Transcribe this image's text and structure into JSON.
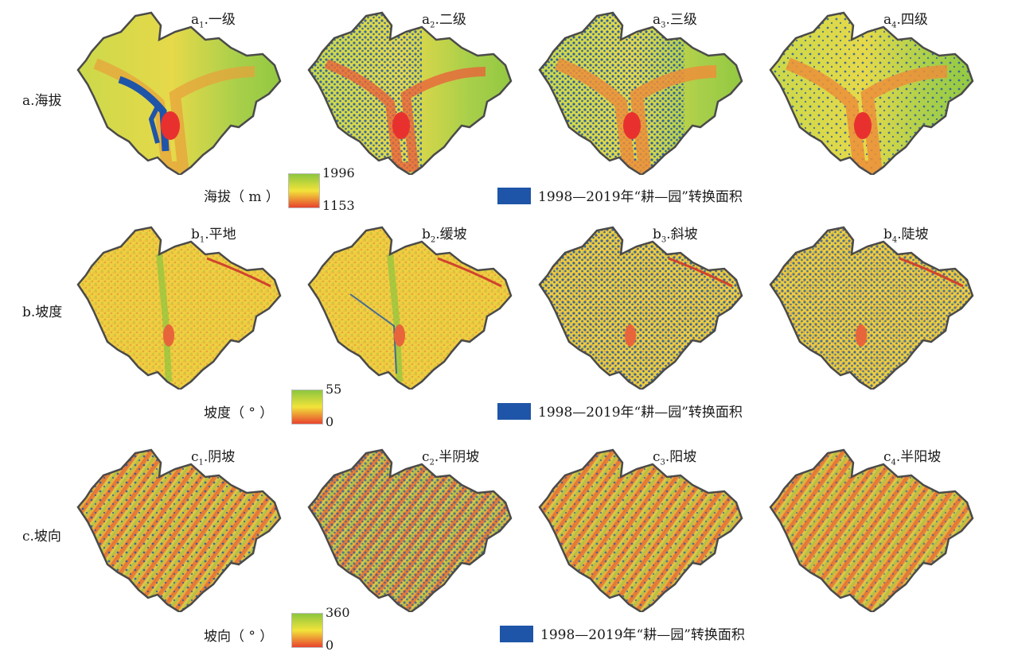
{
  "colors": {
    "conversion": "#1f55a8",
    "ramp_high": "#8cc63f",
    "ramp_mid": "#f2e33a",
    "ramp_low": "#e8432e",
    "boundary": "#4a4a4a"
  },
  "rows": [
    {
      "key": "a",
      "label": "a.海拔",
      "panels": [
        {
          "prefix": "a",
          "sub": "1",
          "name": ".一级",
          "conversion_class": "一级"
        },
        {
          "prefix": "a",
          "sub": "2",
          "name": ".二级",
          "conversion_class": "二级"
        },
        {
          "prefix": "a",
          "sub": "3",
          "name": ".三级",
          "conversion_class": "三级"
        },
        {
          "prefix": "a",
          "sub": "4",
          "name": ".四级",
          "conversion_class": "四级"
        }
      ],
      "legend": {
        "label": "海拔（ m ）",
        "max": "1996",
        "min": "1153"
      },
      "conversion_legend": "1998—2019年“耕—园”转换面积"
    },
    {
      "key": "b",
      "label": "b.坡度",
      "panels": [
        {
          "prefix": "b",
          "sub": "1",
          "name": ".平地",
          "conversion_class": "平地"
        },
        {
          "prefix": "b",
          "sub": "2",
          "name": ".缓坡",
          "conversion_class": "缓坡"
        },
        {
          "prefix": "b",
          "sub": "3",
          "name": ".斜坡",
          "conversion_class": "斜坡"
        },
        {
          "prefix": "b",
          "sub": "4",
          "name": ".陡坡",
          "conversion_class": "陡坡"
        }
      ],
      "legend": {
        "label": "坡度（ ° ）",
        "max": "55",
        "min": "0"
      },
      "conversion_legend": "1998—2019年“耕—园”转换面积"
    },
    {
      "key": "c",
      "label": "c.坡向",
      "panels": [
        {
          "prefix": "c",
          "sub": "1",
          "name": ".阴坡",
          "conversion_class": "阴坡"
        },
        {
          "prefix": "c",
          "sub": "2",
          "name": ".半阴坡",
          "conversion_class": "半阴坡"
        },
        {
          "prefix": "c",
          "sub": "3",
          "name": ".阳坡",
          "conversion_class": "阳坡"
        },
        {
          "prefix": "c",
          "sub": "4",
          "name": ".半阳坡",
          "conversion_class": "半阳坡"
        }
      ],
      "legend": {
        "label": "坡向（ ° ）",
        "max": "360",
        "min": "0"
      },
      "conversion_legend": "1998—2019年“耕—园”转换面积"
    }
  ]
}
